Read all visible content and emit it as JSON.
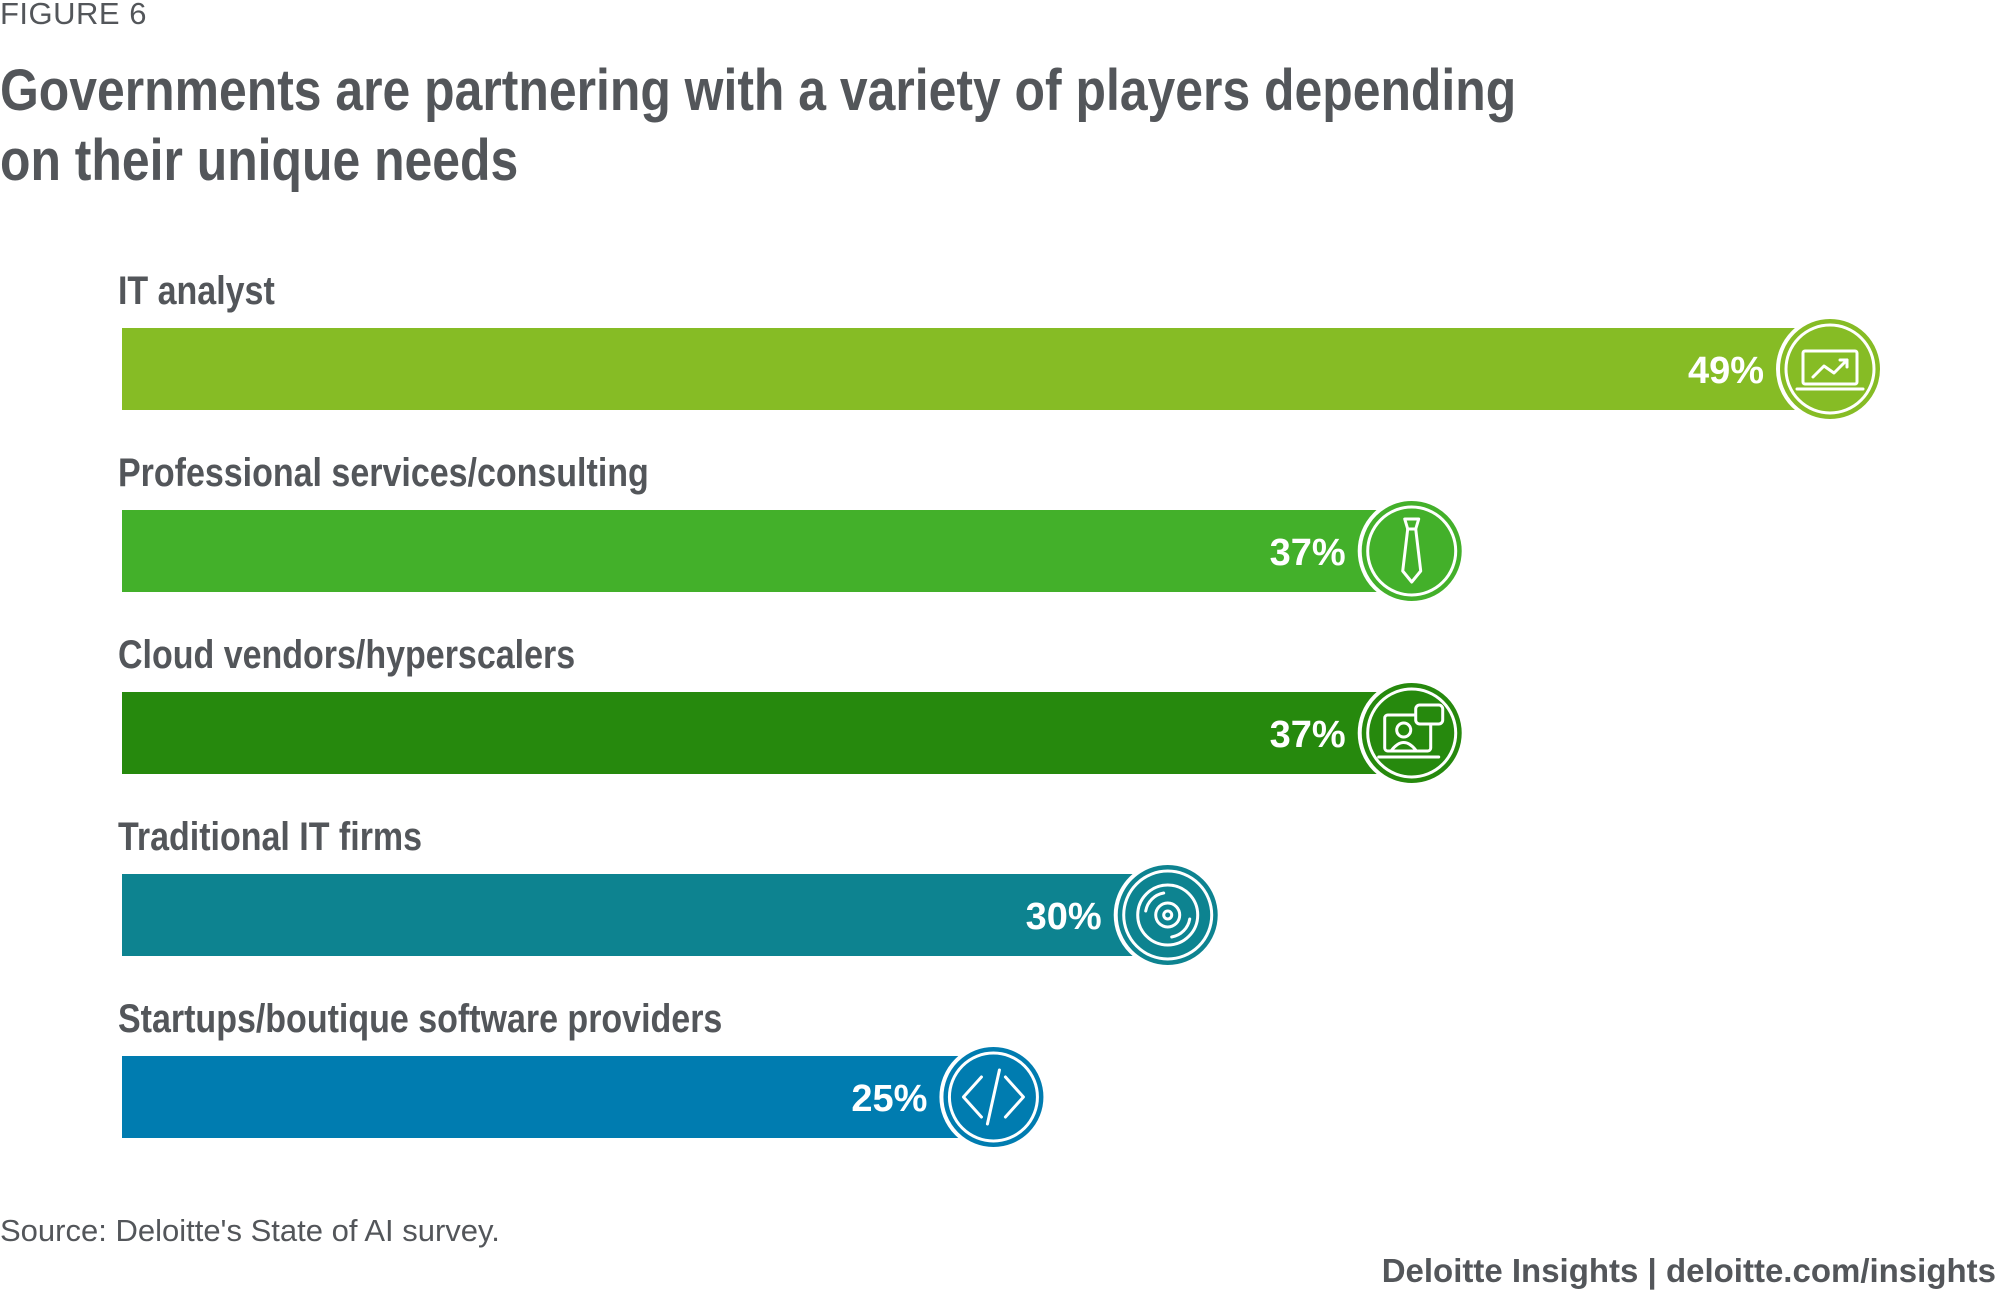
{
  "figure_label": "FIGURE 6",
  "chart_data": {
    "type": "bar",
    "orientation": "horizontal",
    "title": "Governments are partnering with a variety of players depending on their unique needs",
    "categories": [
      "IT analyst",
      "Professional services/consulting",
      "Cloud vendors/hyperscalers",
      "Traditional IT firms",
      "Startups/boutique software providers"
    ],
    "values": [
      49,
      37,
      37,
      30,
      25
    ],
    "value_labels": [
      "49%",
      "37%",
      "37%",
      "30%",
      "25%"
    ],
    "colors": [
      "#86bc25",
      "#43b02a",
      "#26890d",
      "#0d8390",
      "#007cb0"
    ],
    "icons": [
      "line-chart-icon",
      "necktie-icon",
      "cloud-team-icon",
      "disc-icon",
      "code-icon"
    ],
    "xlabel": "",
    "ylabel": "",
    "xlim": [
      0,
      49
    ],
    "grid": false,
    "legend": "none"
  },
  "source": "Source: Deloitte's State of AI survey.",
  "credit": "Deloitte Insights | deloitte.com/insights"
}
